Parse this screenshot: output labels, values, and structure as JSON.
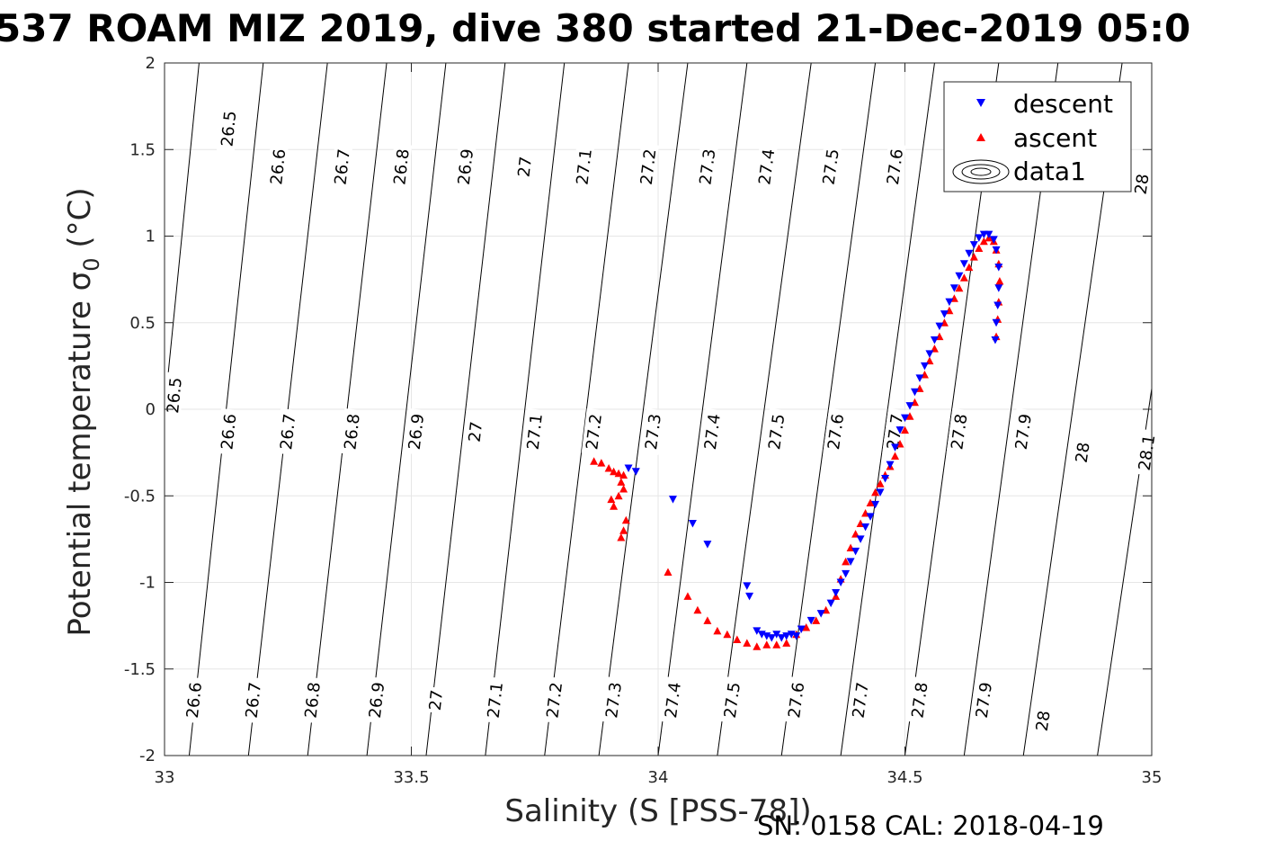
{
  "chart_data": {
    "type": "scatter",
    "title": "537 ROAM MIZ 2019, dive 380 started 21-Dec-2019 05:0",
    "xlabel": "Salinity (S [PSS-78])",
    "ylabel_main": "Potential temperature ",
    "ylabel_sigma": "σ",
    "ylabel_sub": "0",
    "ylabel_unit": " (°C)",
    "footer": "SN: 0158  CAL: 2018-04-19",
    "xlim": [
      33,
      35
    ],
    "ylim": [
      -2,
      2
    ],
    "x_ticks": [
      {
        "value": 33,
        "label": "33"
      },
      {
        "value": 33.5,
        "label": "33.5"
      },
      {
        "value": 34,
        "label": "34"
      },
      {
        "value": 34.5,
        "label": "34.5"
      },
      {
        "value": 35,
        "label": "35"
      }
    ],
    "y_ticks": [
      {
        "value": -2,
        "label": "-2"
      },
      {
        "value": -1.5,
        "label": "-1.5"
      },
      {
        "value": -1,
        "label": "-1"
      },
      {
        "value": -0.5,
        "label": "-0.5"
      },
      {
        "value": 0,
        "label": "0"
      },
      {
        "value": 0.5,
        "label": "0.5"
      },
      {
        "value": 1,
        "label": "1"
      },
      {
        "value": 1.5,
        "label": "1.5"
      },
      {
        "value": 2,
        "label": "2"
      }
    ],
    "grid": true,
    "legend_position": "top-right",
    "legend": [
      {
        "name": "descent",
        "marker": "triangle-down",
        "color": "#0000ff"
      },
      {
        "name": "ascent",
        "marker": "triangle-up",
        "color": "#ff0000"
      },
      {
        "name": "data1",
        "marker": "contour",
        "color": "#000000"
      }
    ],
    "contours": [
      {
        "level": "26.5",
        "line": [
          [
            32.995,
            -0.15
          ],
          [
            33.07,
            2.0
          ]
        ],
        "labels": [
          [
            33.02,
            0.08
          ],
          [
            33.13,
            1.62
          ]
        ]
      },
      {
        "level": "26.6",
        "line": [
          [
            33.05,
            -2.0
          ],
          [
            33.2,
            2.0
          ]
        ],
        "labels": [
          [
            33.06,
            -1.68
          ],
          [
            33.13,
            -0.13
          ],
          [
            33.23,
            1.4
          ]
        ]
      },
      {
        "level": "26.7",
        "line": [
          [
            33.17,
            -2.0
          ],
          [
            33.33,
            2.0
          ]
        ],
        "labels": [
          [
            33.18,
            -1.68
          ],
          [
            33.25,
            -0.13
          ],
          [
            33.36,
            1.4
          ]
        ]
      },
      {
        "level": "26.8",
        "line": [
          [
            33.29,
            -2.0
          ],
          [
            33.45,
            2.0
          ]
        ],
        "labels": [
          [
            33.3,
            -1.68
          ],
          [
            33.38,
            -0.13
          ],
          [
            33.48,
            1.4
          ]
        ]
      },
      {
        "level": "26.9",
        "line": [
          [
            33.41,
            -2.0
          ],
          [
            33.57,
            2.0
          ]
        ],
        "labels": [
          [
            33.43,
            -1.68
          ],
          [
            33.51,
            -0.13
          ],
          [
            33.61,
            1.4
          ]
        ]
      },
      {
        "level": "27",
        "line": [
          [
            33.53,
            -2.0
          ],
          [
            33.69,
            2.0
          ]
        ],
        "labels": [
          [
            33.55,
            -1.68
          ],
          [
            33.63,
            -0.13
          ],
          [
            33.73,
            1.4
          ]
        ]
      },
      {
        "level": "27.1",
        "line": [
          [
            33.65,
            -2.0
          ],
          [
            33.81,
            2.0
          ]
        ],
        "labels": [
          [
            33.67,
            -1.68
          ],
          [
            33.75,
            -0.13
          ],
          [
            33.85,
            1.4
          ]
        ]
      },
      {
        "level": "27.2",
        "line": [
          [
            33.77,
            -2.0
          ],
          [
            33.94,
            2.0
          ]
        ],
        "labels": [
          [
            33.79,
            -1.68
          ],
          [
            33.87,
            -0.13
          ],
          [
            33.98,
            1.4
          ]
        ]
      },
      {
        "level": "27.3",
        "line": [
          [
            33.88,
            -2.0
          ],
          [
            34.06,
            2.0
          ]
        ],
        "labels": [
          [
            33.91,
            -1.68
          ],
          [
            33.99,
            -0.13
          ],
          [
            34.1,
            1.4
          ]
        ]
      },
      {
        "level": "27.4",
        "line": [
          [
            34.0,
            -2.0
          ],
          [
            34.18,
            2.0
          ]
        ],
        "labels": [
          [
            34.03,
            -1.68
          ],
          [
            34.11,
            -0.13
          ],
          [
            34.22,
            1.4
          ]
        ]
      },
      {
        "level": "27.5",
        "line": [
          [
            34.12,
            -2.0
          ],
          [
            34.31,
            2.0
          ]
        ],
        "labels": [
          [
            34.15,
            -1.68
          ],
          [
            34.24,
            -0.13
          ],
          [
            34.35,
            1.4
          ]
        ]
      },
      {
        "level": "27.6",
        "line": [
          [
            34.25,
            -2.0
          ],
          [
            34.44,
            2.0
          ]
        ],
        "labels": [
          [
            34.28,
            -1.68
          ],
          [
            34.36,
            -0.13
          ],
          [
            34.48,
            1.4
          ]
        ]
      },
      {
        "level": "27.7",
        "line": [
          [
            34.37,
            -2.0
          ],
          [
            34.56,
            2.0
          ]
        ],
        "labels": [
          [
            34.41,
            -1.68
          ],
          [
            34.48,
            -0.13
          ]
        ]
      },
      {
        "level": "27.8",
        "line": [
          [
            34.5,
            -2.0
          ],
          [
            34.69,
            2.0
          ]
        ],
        "labels": [
          [
            34.53,
            -1.68
          ],
          [
            34.61,
            -0.13
          ]
        ]
      },
      {
        "level": "27.9",
        "line": [
          [
            34.62,
            -2.0
          ],
          [
            34.81,
            2.0
          ]
        ],
        "labels": [
          [
            34.66,
            -1.68
          ],
          [
            34.74,
            -0.13
          ]
        ]
      },
      {
        "level": "28",
        "line": [
          [
            34.74,
            -2.0
          ],
          [
            34.94,
            2.0
          ]
        ],
        "labels": [
          [
            34.78,
            -1.8
          ],
          [
            34.86,
            -0.25
          ],
          [
            34.98,
            1.3
          ]
        ]
      },
      {
        "level": "28.1",
        "line": [
          [
            34.89,
            -2.0
          ],
          [
            35.0,
            0.12
          ]
        ],
        "labels": [
          [
            34.99,
            -0.25
          ]
        ]
      }
    ],
    "series": [
      {
        "name": "descent",
        "marker": "triangle-down",
        "color": "#0000ff",
        "points": [
          [
            33.94,
            -0.34
          ],
          [
            33.955,
            -0.36
          ],
          [
            34.03,
            -0.52
          ],
          [
            34.07,
            -0.66
          ],
          [
            34.1,
            -0.78
          ],
          [
            34.18,
            -1.02
          ],
          [
            34.185,
            -1.08
          ],
          [
            34.2,
            -1.28
          ],
          [
            34.21,
            -1.3
          ],
          [
            34.22,
            -1.31
          ],
          [
            34.23,
            -1.32
          ],
          [
            34.24,
            -1.3
          ],
          [
            34.25,
            -1.32
          ],
          [
            34.26,
            -1.31
          ],
          [
            34.27,
            -1.3
          ],
          [
            34.28,
            -1.31
          ],
          [
            34.29,
            -1.27
          ],
          [
            34.31,
            -1.22
          ],
          [
            34.33,
            -1.18
          ],
          [
            34.35,
            -1.12
          ],
          [
            34.36,
            -1.06
          ],
          [
            34.37,
            -1.0
          ],
          [
            34.38,
            -0.95
          ],
          [
            34.39,
            -0.88
          ],
          [
            34.4,
            -0.82
          ],
          [
            34.41,
            -0.75
          ],
          [
            34.42,
            -0.68
          ],
          [
            34.43,
            -0.62
          ],
          [
            34.44,
            -0.55
          ],
          [
            34.45,
            -0.48
          ],
          [
            34.46,
            -0.4
          ],
          [
            34.47,
            -0.32
          ],
          [
            34.48,
            -0.22
          ],
          [
            34.49,
            -0.12
          ],
          [
            34.5,
            -0.05
          ],
          [
            34.51,
            0.02
          ],
          [
            34.52,
            0.1
          ],
          [
            34.53,
            0.18
          ],
          [
            34.54,
            0.25
          ],
          [
            34.55,
            0.32
          ],
          [
            34.56,
            0.4
          ],
          [
            34.57,
            0.48
          ],
          [
            34.58,
            0.55
          ],
          [
            34.59,
            0.62
          ],
          [
            34.6,
            0.7
          ],
          [
            34.61,
            0.77
          ],
          [
            34.62,
            0.84
          ],
          [
            34.63,
            0.9
          ],
          [
            34.64,
            0.95
          ],
          [
            34.65,
            0.99
          ],
          [
            34.66,
            1.01
          ],
          [
            34.67,
            1.01
          ],
          [
            34.68,
            0.98
          ],
          [
            34.685,
            0.92
          ],
          [
            34.69,
            0.82
          ],
          [
            34.69,
            0.7
          ],
          [
            34.688,
            0.6
          ],
          [
            34.685,
            0.5
          ],
          [
            34.683,
            0.4
          ]
        ]
      },
      {
        "name": "ascent",
        "marker": "triangle-up",
        "color": "#ff0000",
        "points": [
          [
            33.87,
            -0.3
          ],
          [
            33.885,
            -0.31
          ],
          [
            33.9,
            -0.34
          ],
          [
            33.91,
            -0.36
          ],
          [
            33.92,
            -0.37
          ],
          [
            33.93,
            -0.38
          ],
          [
            33.925,
            -0.42
          ],
          [
            33.93,
            -0.46
          ],
          [
            33.92,
            -0.5
          ],
          [
            33.905,
            -0.52
          ],
          [
            33.91,
            -0.56
          ],
          [
            33.935,
            -0.64
          ],
          [
            33.93,
            -0.7
          ],
          [
            33.925,
            -0.74
          ],
          [
            34.02,
            -0.94
          ],
          [
            34.06,
            -1.08
          ],
          [
            34.08,
            -1.16
          ],
          [
            34.1,
            -1.22
          ],
          [
            34.12,
            -1.28
          ],
          [
            34.14,
            -1.3
          ],
          [
            34.16,
            -1.33
          ],
          [
            34.18,
            -1.35
          ],
          [
            34.2,
            -1.37
          ],
          [
            34.22,
            -1.36
          ],
          [
            34.24,
            -1.36
          ],
          [
            34.26,
            -1.35
          ],
          [
            34.28,
            -1.3
          ],
          [
            34.3,
            -1.26
          ],
          [
            34.32,
            -1.22
          ],
          [
            34.34,
            -1.16
          ],
          [
            34.36,
            -1.08
          ],
          [
            34.37,
            -0.98
          ],
          [
            34.38,
            -0.88
          ],
          [
            34.39,
            -0.8
          ],
          [
            34.4,
            -0.72
          ],
          [
            34.41,
            -0.66
          ],
          [
            34.42,
            -0.6
          ],
          [
            34.43,
            -0.54
          ],
          [
            34.44,
            -0.48
          ],
          [
            34.45,
            -0.43
          ],
          [
            34.46,
            -0.38
          ],
          [
            34.47,
            -0.33
          ],
          [
            34.48,
            -0.27
          ],
          [
            34.49,
            -0.2
          ],
          [
            34.5,
            -0.12
          ],
          [
            34.51,
            -0.04
          ],
          [
            34.52,
            0.04
          ],
          [
            34.53,
            0.12
          ],
          [
            34.54,
            0.2
          ],
          [
            34.55,
            0.28
          ],
          [
            34.56,
            0.35
          ],
          [
            34.57,
            0.42
          ],
          [
            34.58,
            0.5
          ],
          [
            34.59,
            0.57
          ],
          [
            34.6,
            0.64
          ],
          [
            34.61,
            0.7
          ],
          [
            34.62,
            0.76
          ],
          [
            34.63,
            0.82
          ],
          [
            34.64,
            0.88
          ],
          [
            34.65,
            0.93
          ],
          [
            34.66,
            0.97
          ],
          [
            34.67,
            0.99
          ],
          [
            34.68,
            0.97
          ],
          [
            34.685,
            0.92
          ],
          [
            34.69,
            0.84
          ],
          [
            34.692,
            0.74
          ],
          [
            34.69,
            0.62
          ],
          [
            34.688,
            0.52
          ],
          [
            34.685,
            0.42
          ]
        ]
      }
    ]
  }
}
